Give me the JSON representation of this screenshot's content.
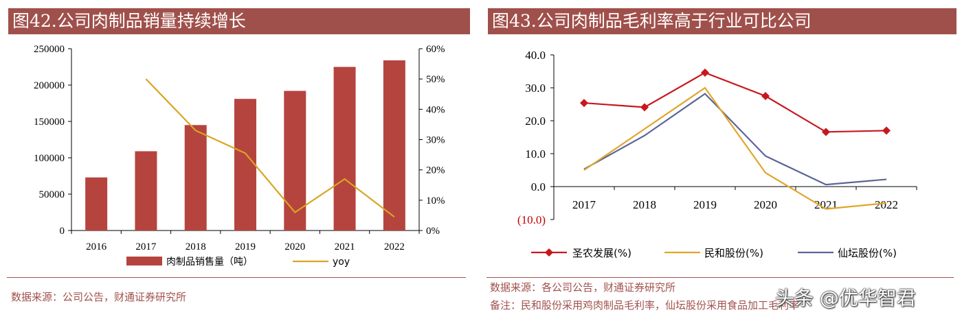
{
  "left": {
    "title": "图42.公司肉制品销量持续增长",
    "source": "数据来源：公司公告，财通证券研究所",
    "chart_data": {
      "type": "bar",
      "categories": [
        "2016",
        "2017",
        "2018",
        "2019",
        "2020",
        "2021",
        "2022"
      ],
      "series": [
        {
          "name": "肉制品销售量（吨）",
          "kind": "bar",
          "axis": "left",
          "color": "#b5443f",
          "values": [
            73000,
            109000,
            145000,
            181000,
            192000,
            225000,
            234000
          ]
        },
        {
          "name": "yoy",
          "kind": "line",
          "axis": "right",
          "color": "#d9a520",
          "values": [
            null,
            50.0,
            33.0,
            25.5,
            6.0,
            17.0,
            4.5
          ]
        }
      ],
      "ylim": [
        0,
        250000
      ],
      "yticks": [
        "250000",
        "200000",
        "150000",
        "100000",
        "50000",
        "0"
      ],
      "y2lim": [
        0,
        60
      ],
      "y2ticks": [
        "60%",
        "50%",
        "40%",
        "30%",
        "20%",
        "10%",
        "0%"
      ],
      "legend_position": "bottom"
    }
  },
  "right": {
    "title": "图43.公司肉制品毛利率高于行业可比公司",
    "source": "数据来源：各公司公告，财通证券研究所",
    "note": "备注：民和股份采用鸡肉制品毛利率，仙坛股份采用食品加工毛利率",
    "chart_data": {
      "type": "line",
      "categories": [
        "2017",
        "2018",
        "2019",
        "2020",
        "2021",
        "2022"
      ],
      "series": [
        {
          "name": "圣农发展(%)",
          "color": "#c8171e",
          "marker": "diamond",
          "values": [
            25.4,
            24.1,
            34.6,
            27.5,
            16.6,
            17.0
          ]
        },
        {
          "name": "民和股份(%)",
          "color": "#e0a52a",
          "marker": "none",
          "values": [
            5.0,
            17.5,
            30.0,
            4.2,
            -6.8,
            -5.0
          ]
        },
        {
          "name": "仙坛股份(%)",
          "color": "#5a6496",
          "marker": "none",
          "values": [
            5.3,
            15.5,
            28.2,
            9.3,
            0.6,
            2.2
          ]
        }
      ],
      "ylim": [
        -10,
        40
      ],
      "yticks": [
        "40.0",
        "30.0",
        "20.0",
        "10.0",
        "0.0",
        "(10.0)"
      ],
      "legend_position": "bottom"
    }
  },
  "watermark": "头条 @优华智君"
}
